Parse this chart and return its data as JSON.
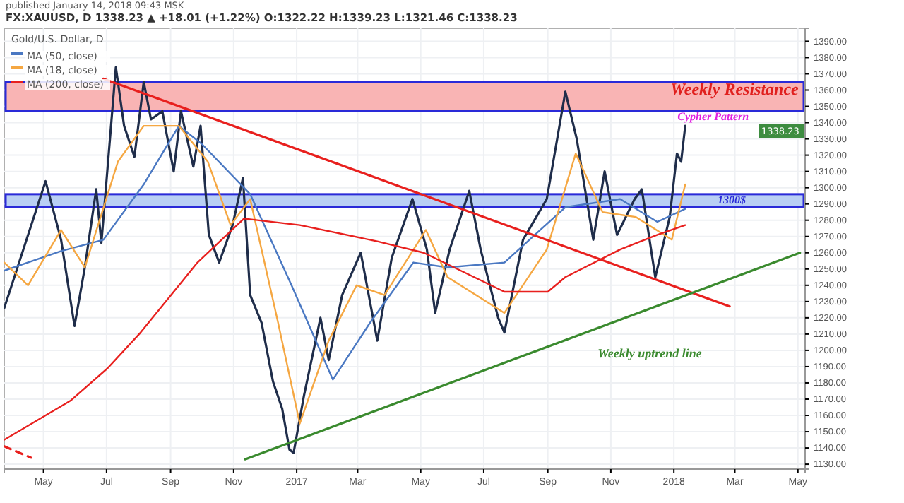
{
  "chart_data": {
    "type": "line",
    "title": "FX:XAUUSD, D 1338.23 ▲ +18.01 (+1.22%) O:1322.22 H:1339.23 L:1321.46 C:1338.23",
    "subtitle": "Gold/U.S. Dollar, D",
    "xlim": [
      "2016-03-24",
      "2018-05-08"
    ],
    "xticks": [
      {
        "value": "2016-05-01",
        "label": "May"
      },
      {
        "value": "2016-07-01",
        "label": "Jul"
      },
      {
        "value": "2016-09-01",
        "label": "Sep"
      },
      {
        "value": "2016-11-01",
        "label": "Nov"
      },
      {
        "value": "2017-01-01",
        "label": "2017"
      },
      {
        "value": "2017-03-01",
        "label": "Mar"
      },
      {
        "value": "2017-05-01",
        "label": "May"
      },
      {
        "value": "2017-07-01",
        "label": "Jul"
      },
      {
        "value": "2017-09-01",
        "label": "Sep"
      },
      {
        "value": "2017-11-01",
        "label": "Nov"
      },
      {
        "value": "2018-01-01",
        "label": "2018"
      },
      {
        "value": "2018-03-01",
        "label": "Mar"
      },
      {
        "value": "2018-05-01",
        "label": "May"
      }
    ],
    "ylim": [
      1127,
      1398
    ],
    "yticks": [
      {
        "value": 1130,
        "label": "1130.00"
      },
      {
        "value": 1140,
        "label": "1140.00"
      },
      {
        "value": 1150,
        "label": "1150.00"
      },
      {
        "value": 1160,
        "label": "1160.00"
      },
      {
        "value": 1170,
        "label": "1170.00"
      },
      {
        "value": 1180,
        "label": "1180.00"
      },
      {
        "value": 1190,
        "label": "1190.00"
      },
      {
        "value": 1200,
        "label": "1200.00"
      },
      {
        "value": 1210,
        "label": "1210.00"
      },
      {
        "value": 1220,
        "label": "1220.00"
      },
      {
        "value": 1230,
        "label": "1230.00"
      },
      {
        "value": 1240,
        "label": "1240.00"
      },
      {
        "value": 1250,
        "label": "1250.00"
      },
      {
        "value": 1260,
        "label": "1260.00"
      },
      {
        "value": 1270,
        "label": "1270.00"
      },
      {
        "value": 1280,
        "label": "1280.00"
      },
      {
        "value": 1290,
        "label": "1290.00"
      },
      {
        "value": 1300,
        "label": "1300.00"
      },
      {
        "value": 1310,
        "label": "1310.00"
      },
      {
        "value": 1320,
        "label": "1320.00"
      },
      {
        "value": 1330,
        "label": "1330.00"
      },
      {
        "value": 1340,
        "label": "1340.00"
      },
      {
        "value": 1350,
        "label": "1350.00"
      },
      {
        "value": 1360,
        "label": "1360.00"
      },
      {
        "value": 1370,
        "label": "1370.00"
      },
      {
        "value": 1380,
        "label": "1380.00"
      },
      {
        "value": 1390,
        "label": "1390.00"
      }
    ],
    "grid": true,
    "legend": "top left",
    "tick_labels": "xy",
    "series": [
      {
        "type": "line",
        "color": "#1f2d4a",
        "x": [
          "2016-03-24",
          "2016-05-03",
          "2016-05-18",
          "2016-05-31",
          "2016-06-10",
          "2016-06-21",
          "2016-06-26",
          "2016-07-10",
          "2016-07-18",
          "2016-07-28",
          "2016-08-06",
          "2016-08-13",
          "2016-08-24",
          "2016-09-04",
          "2016-09-11",
          "2016-09-23",
          "2016-09-30",
          "2016-10-08",
          "2016-10-18",
          "2016-10-31",
          "2016-11-10",
          "2016-11-17",
          "2016-11-28",
          "2016-12-09",
          "2016-12-18",
          "2016-12-25",
          "2016-12-29",
          "2017-01-08",
          "2017-01-24",
          "2017-02-01",
          "2017-02-14",
          "2017-03-04",
          "2017-03-20",
          "2017-04-03",
          "2017-04-23",
          "2017-05-07",
          "2017-05-15",
          "2017-05-29",
          "2017-06-17",
          "2017-06-28",
          "2017-07-15",
          "2017-07-21",
          "2017-08-08",
          "2017-08-31",
          "2017-09-18",
          "2017-09-29",
          "2017-10-15",
          "2017-10-26",
          "2017-11-07",
          "2017-11-24",
          "2017-12-01",
          "2017-12-14",
          "2017-12-28",
          "2018-01-04",
          "2018-01-08",
          "2018-01-12"
        ],
        "values": [
          1226,
          1304,
          1268,
          1215,
          1251,
          1299,
          1266,
          1374,
          1338,
          1319,
          1365,
          1342,
          1347,
          1310,
          1347,
          1313,
          1338,
          1271,
          1254,
          1277,
          1306,
          1234,
          1217,
          1181,
          1164,
          1139,
          1137,
          1172,
          1220,
          1194,
          1234,
          1260,
          1206,
          1257,
          1293,
          1262,
          1223,
          1262,
          1298,
          1262,
          1220,
          1211,
          1268,
          1293,
          1359,
          1330,
          1268,
          1310,
          1271,
          1293,
          1299,
          1245,
          1282,
          1321,
          1316,
          1338
        ]
      },
      {
        "name": "MA (50, close)",
        "type": "line",
        "color": "#4a78c2",
        "x": [
          "2016-03-24",
          "2016-05-18",
          "2016-06-28",
          "2016-08-06",
          "2016-09-09",
          "2016-10-01",
          "2016-11-17",
          "2016-12-27",
          "2017-02-05",
          "2017-03-13",
          "2017-04-24",
          "2017-05-27",
          "2017-07-21",
          "2017-09-18",
          "2017-11-10",
          "2017-12-16",
          "2018-01-12"
        ],
        "values": [
          1249,
          1261,
          1268,
          1302,
          1338,
          1327,
          1296,
          1240,
          1182,
          1217,
          1254,
          1251,
          1254,
          1288,
          1293,
          1279,
          1287
        ]
      },
      {
        "name": "MA (18, close)",
        "type": "line",
        "color": "#f5a742",
        "x": [
          "2016-03-24",
          "2016-04-16",
          "2016-05-18",
          "2016-06-10",
          "2016-07-12",
          "2016-08-06",
          "2016-09-09",
          "2016-10-07",
          "2016-10-29",
          "2016-11-17",
          "2016-12-14",
          "2017-01-04",
          "2017-02-01",
          "2017-02-28",
          "2017-03-27",
          "2017-05-06",
          "2017-05-27",
          "2017-07-21",
          "2017-08-31",
          "2017-09-28",
          "2017-10-24",
          "2017-11-25",
          "2017-12-30",
          "2018-01-12"
        ],
        "values": [
          1254,
          1240,
          1274,
          1251,
          1316,
          1338,
          1338,
          1316,
          1277,
          1293,
          1217,
          1155,
          1206,
          1240,
          1234,
          1274,
          1245,
          1223,
          1262,
          1321,
          1285,
          1282,
          1268,
          1302
        ]
      },
      {
        "name": "MA (200, close)",
        "type": "line",
        "color": "#e8201e",
        "x": [
          "2016-03-24",
          "2016-05-27",
          "2016-07-02",
          "2016-08-03",
          "2016-09-27",
          "2016-11-11",
          "2017-01-04",
          "2017-03-20",
          "2017-05-04",
          "2017-07-21",
          "2017-09-01",
          "2017-09-18",
          "2017-11-10",
          "2017-12-16",
          "2018-01-12"
        ],
        "values": [
          1145,
          1169,
          1189,
          1211,
          1254,
          1281,
          1277,
          1267,
          1260,
          1236,
          1236,
          1245,
          1262,
          1271,
          1277
        ]
      },
      {
        "type": "line",
        "color": "#e8201e",
        "x": [
          "2016-06-28",
          "2018-02-24"
        ],
        "values": [
          1367,
          1227
        ]
      },
      {
        "type": "line",
        "color": "#3a8a2e",
        "x": [
          "2016-11-12",
          "2018-05-03"
        ],
        "values": [
          1133,
          1260
        ]
      },
      {
        "type": "line",
        "color": "#e8201e",
        "line_style": "dashed",
        "x": [
          "2016-03-24",
          "2016-04-19"
        ],
        "values": [
          1141,
          1134
        ]
      }
    ],
    "bands": [
      {
        "axis": "y",
        "from": 1347,
        "to": 1365,
        "color": "#f9b4b4"
      },
      {
        "axis": "y",
        "from": 1288,
        "to": 1296,
        "color": "#b9cff4"
      }
    ],
    "annotations": [
      "Weekly Resistance",
      {
        "text": "Cypher Pattern",
        "x": "2018-02-08",
        "y": 1343
      },
      {
        "text": "1300$",
        "x": "2018-02-26",
        "y": 1292
      },
      "Weekly uptrend line",
      "1338.23",
      "published January 14, 2018 09:43 MSK"
    ]
  }
}
